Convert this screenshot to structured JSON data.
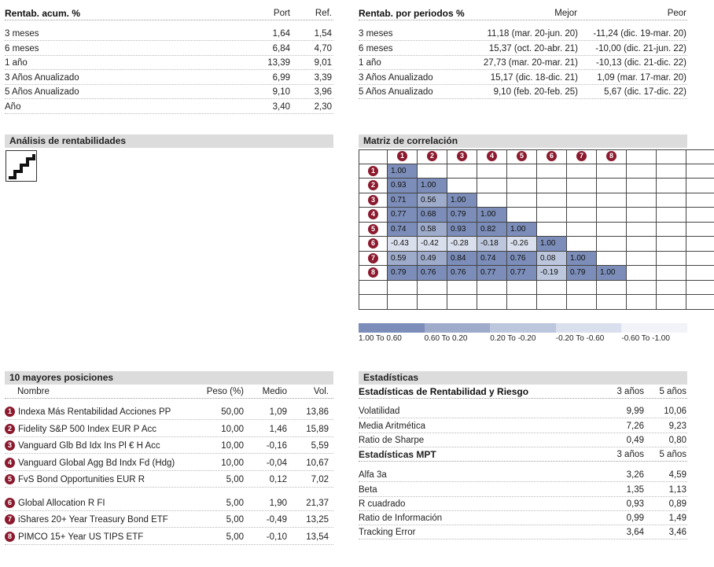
{
  "rentab_acum": {
    "title": "Rentab. acum. %",
    "col_port": "Port",
    "col_ref": "Ref.",
    "rows": [
      {
        "label": "3 meses",
        "port": "1,64",
        "ref": "1,54"
      },
      {
        "label": "6 meses",
        "port": "6,84",
        "ref": "4,70"
      },
      {
        "label": "1 año",
        "port": "13,39",
        "ref": "9,01"
      },
      {
        "label": "3 Años Anualizado",
        "port": "6,99",
        "ref": "3,39"
      },
      {
        "label": "5 Años Anualizado",
        "port": "9,10",
        "ref": "3,96"
      },
      {
        "label": "Año",
        "port": "3,40",
        "ref": "2,30"
      }
    ]
  },
  "rentab_periodos": {
    "title": "Rentab. por periodos %",
    "col_mejor": "Mejor",
    "col_peor": "Peor",
    "rows": [
      {
        "label": "3 meses",
        "mejor": "11,18 (mar. 20-jun. 20)",
        "peor": "-11,24 (dic. 19-mar. 20)"
      },
      {
        "label": "6 meses",
        "mejor": "15,37 (oct. 20-abr. 21)",
        "peor": "-10,00 (dic. 21-jun. 22)"
      },
      {
        "label": "1 año",
        "mejor": "27,73 (mar. 20-mar. 21)",
        "peor": "-10,13 (dic. 21-dic. 22)"
      },
      {
        "label": "3 Años Anualizado",
        "mejor": "15,17 (dic. 18-dic. 21)",
        "peor": "1,09 (mar. 17-mar. 20)"
      },
      {
        "label": "5 Años Anualizado",
        "mejor": "9,10 (feb. 20-feb. 25)",
        "peor": "5,67 (dic. 17-dic. 22)"
      }
    ]
  },
  "analisis": {
    "title": "Análisis de rentabilidades",
    "icon": "staircase-icon"
  },
  "matriz": {
    "title": "Matriz de correlación",
    "labels": [
      "1",
      "2",
      "3",
      "4",
      "5",
      "6",
      "7",
      "8"
    ],
    "rows": [
      [
        "1.00"
      ],
      [
        "0.93",
        "1.00"
      ],
      [
        "0.71",
        "0.56",
        "1.00"
      ],
      [
        "0.77",
        "0.68",
        "0.79",
        "1.00"
      ],
      [
        "0.74",
        "0.58",
        "0.93",
        "0.82",
        "1.00"
      ],
      [
        "-0.43",
        "-0.42",
        "-0.28",
        "-0.18",
        "-0.26",
        "1.00"
      ],
      [
        "0.59",
        "0.49",
        "0.84",
        "0.74",
        "0.76",
        "0.08",
        "1.00"
      ],
      [
        "0.79",
        "0.76",
        "0.76",
        "0.77",
        "0.77",
        "-0.19",
        "0.79",
        "1.00"
      ]
    ],
    "legend": [
      {
        "label": "1.00 To 0.60",
        "color": "#7b8db8"
      },
      {
        "label": "0.60 To 0.20",
        "color": "#9eabca"
      },
      {
        "label": "0.20 To -0.20",
        "color": "#bcc6dc"
      },
      {
        "label": "-0.20 To -0.60",
        "color": "#d9dfec"
      },
      {
        "label": "-0.60 To -1.00",
        "color": "#f1f3f8"
      }
    ],
    "badge_color": "#8b1a2e"
  },
  "posiciones": {
    "title": "10 mayores posiciones",
    "col_nombre": "Nombre",
    "col_peso": "Peso (%)",
    "col_medio": "Medio",
    "col_vol": "Vol.",
    "rows": [
      {
        "n": "1",
        "name": "Indexa Más Rentabilidad Acciones PP",
        "peso": "50,00",
        "medio": "1,09",
        "vol": "13,86"
      },
      {
        "n": "2",
        "name": "Fidelity S&P 500 Index EUR P Acc",
        "peso": "10,00",
        "medio": "1,46",
        "vol": "15,89"
      },
      {
        "n": "3",
        "name": "Vanguard Glb Bd Idx Ins Pl € H Acc",
        "peso": "10,00",
        "medio": "-0,16",
        "vol": "5,59"
      },
      {
        "n": "4",
        "name": "Vanguard Global Agg Bd Indx Fd (Hdg)",
        "peso": "10,00",
        "medio": "-0,04",
        "vol": "10,67"
      },
      {
        "n": "5",
        "name": "FvS Bond Opportunities EUR R",
        "peso": "5,00",
        "medio": "0,12",
        "vol": "7,02"
      },
      {
        "n": "6",
        "name": "Global Allocation R FI",
        "peso": "5,00",
        "medio": "1,90",
        "vol": "21,37"
      },
      {
        "n": "7",
        "name": "iShares 20+ Year Treasury Bond ETF",
        "peso": "5,00",
        "medio": "-0,49",
        "vol": "13,25"
      },
      {
        "n": "8",
        "name": "PIMCO 15+ Year US TIPS ETF",
        "peso": "5,00",
        "medio": "-0,10",
        "vol": "13,54"
      }
    ]
  },
  "estadisticas": {
    "title": "Estadísticas",
    "sub1": "Estadísticas de Rentabilidad y Riesgo",
    "col_3": "3 años",
    "col_5": "5 años",
    "rows1": [
      {
        "label": "Volatilidad",
        "a": "9,99",
        "b": "10,06"
      },
      {
        "label": "Media Aritmética",
        "a": "7,26",
        "b": "9,23"
      },
      {
        "label": "Ratio de Sharpe",
        "a": "0,49",
        "b": "0,80"
      }
    ],
    "sub2": "Estadísticas MPT",
    "rows2": [
      {
        "label": "Alfa 3a",
        "a": "3,26",
        "b": "4,59"
      },
      {
        "label": "Beta",
        "a": "1,35",
        "b": "1,13"
      },
      {
        "label": "R cuadrado",
        "a": "0,93",
        "b": "0,89"
      },
      {
        "label": "Ratio de Información",
        "a": "0,99",
        "b": "1,49"
      },
      {
        "label": "Tracking Error",
        "a": "3,64",
        "b": "3,46"
      }
    ]
  }
}
